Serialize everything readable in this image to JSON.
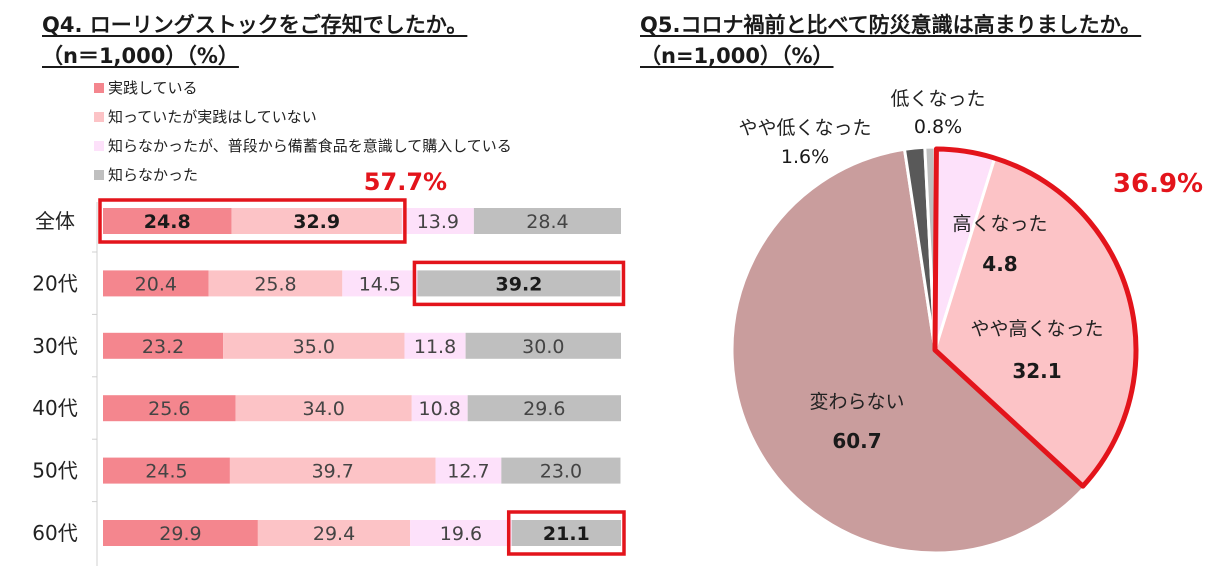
{
  "q4": {
    "title": "Q4. ローリングストックをご存知でしたか。",
    "subtitle": "（n＝1,000）（%）",
    "highlight_label": "57.7%"
  },
  "q5": {
    "title": "Q5.コロナ禍前と比べて防災意識は高まりましたか。",
    "subtitle": "（n=1,000）（%）",
    "highlight_label": "36.9%"
  },
  "chart_data": [
    {
      "type": "bar",
      "orientation": "horizontal",
      "stacked": true,
      "categories": [
        "全体",
        "20代",
        "30代",
        "40代",
        "50代",
        "60代"
      ],
      "series": [
        {
          "name": "実践している",
          "color": "#f4868e",
          "values": [
            24.8,
            20.4,
            23.2,
            25.6,
            24.5,
            29.9
          ]
        },
        {
          "name": "知っていたが実践はしていない",
          "color": "#fcc3c6",
          "values": [
            32.9,
            25.8,
            35.0,
            34.0,
            39.7,
            29.4
          ]
        },
        {
          "name": "知らなかったが、普段から備蓄食品を意識して購入している",
          "color": "#fde1fa",
          "values": [
            13.9,
            14.5,
            11.8,
            10.8,
            12.7,
            19.6
          ]
        },
        {
          "name": "知らなかった",
          "color": "#bfbfbf",
          "values": [
            28.4,
            39.2,
            30.0,
            29.6,
            23.0,
            21.1
          ]
        }
      ],
      "xlim": [
        0,
        100
      ],
      "legend": "top-left",
      "highlights": [
        {
          "category": "全体",
          "series": [
            "実践している",
            "知っていたが実践はしていない"
          ],
          "label": "57.7%"
        },
        {
          "category": "20代",
          "series": [
            "知らなかった"
          ]
        },
        {
          "category": "60代",
          "series": [
            "知らなかった"
          ]
        }
      ],
      "highlight_color": "#e3141b",
      "bold_values": [
        [
          0,
          0
        ],
        [
          0,
          1
        ],
        [
          1,
          3
        ],
        [
          5,
          3
        ]
      ]
    },
    {
      "type": "pie",
      "slices": [
        {
          "name": "高くなった",
          "value": 4.8,
          "color": "#fde1fa",
          "bold_value": true
        },
        {
          "name": "やや高くなった",
          "value": 32.1,
          "color": "#fcc3c6",
          "bold_value": true
        },
        {
          "name": "変わらない",
          "value": 60.7,
          "color": "#c99d9d",
          "bold_value": true
        },
        {
          "name": "やや低くなった",
          "value": 1.6,
          "color": "#595959",
          "bold_value": false
        },
        {
          "name": "低くなった",
          "value": 0.8,
          "color": "#bfbfbf",
          "bold_value": false
        }
      ],
      "start": "top",
      "direction": "clockwise",
      "highlight": {
        "slices": [
          "高くなった",
          "やや高くなった"
        ],
        "label": "36.9%",
        "color": "#e3141b"
      }
    }
  ]
}
